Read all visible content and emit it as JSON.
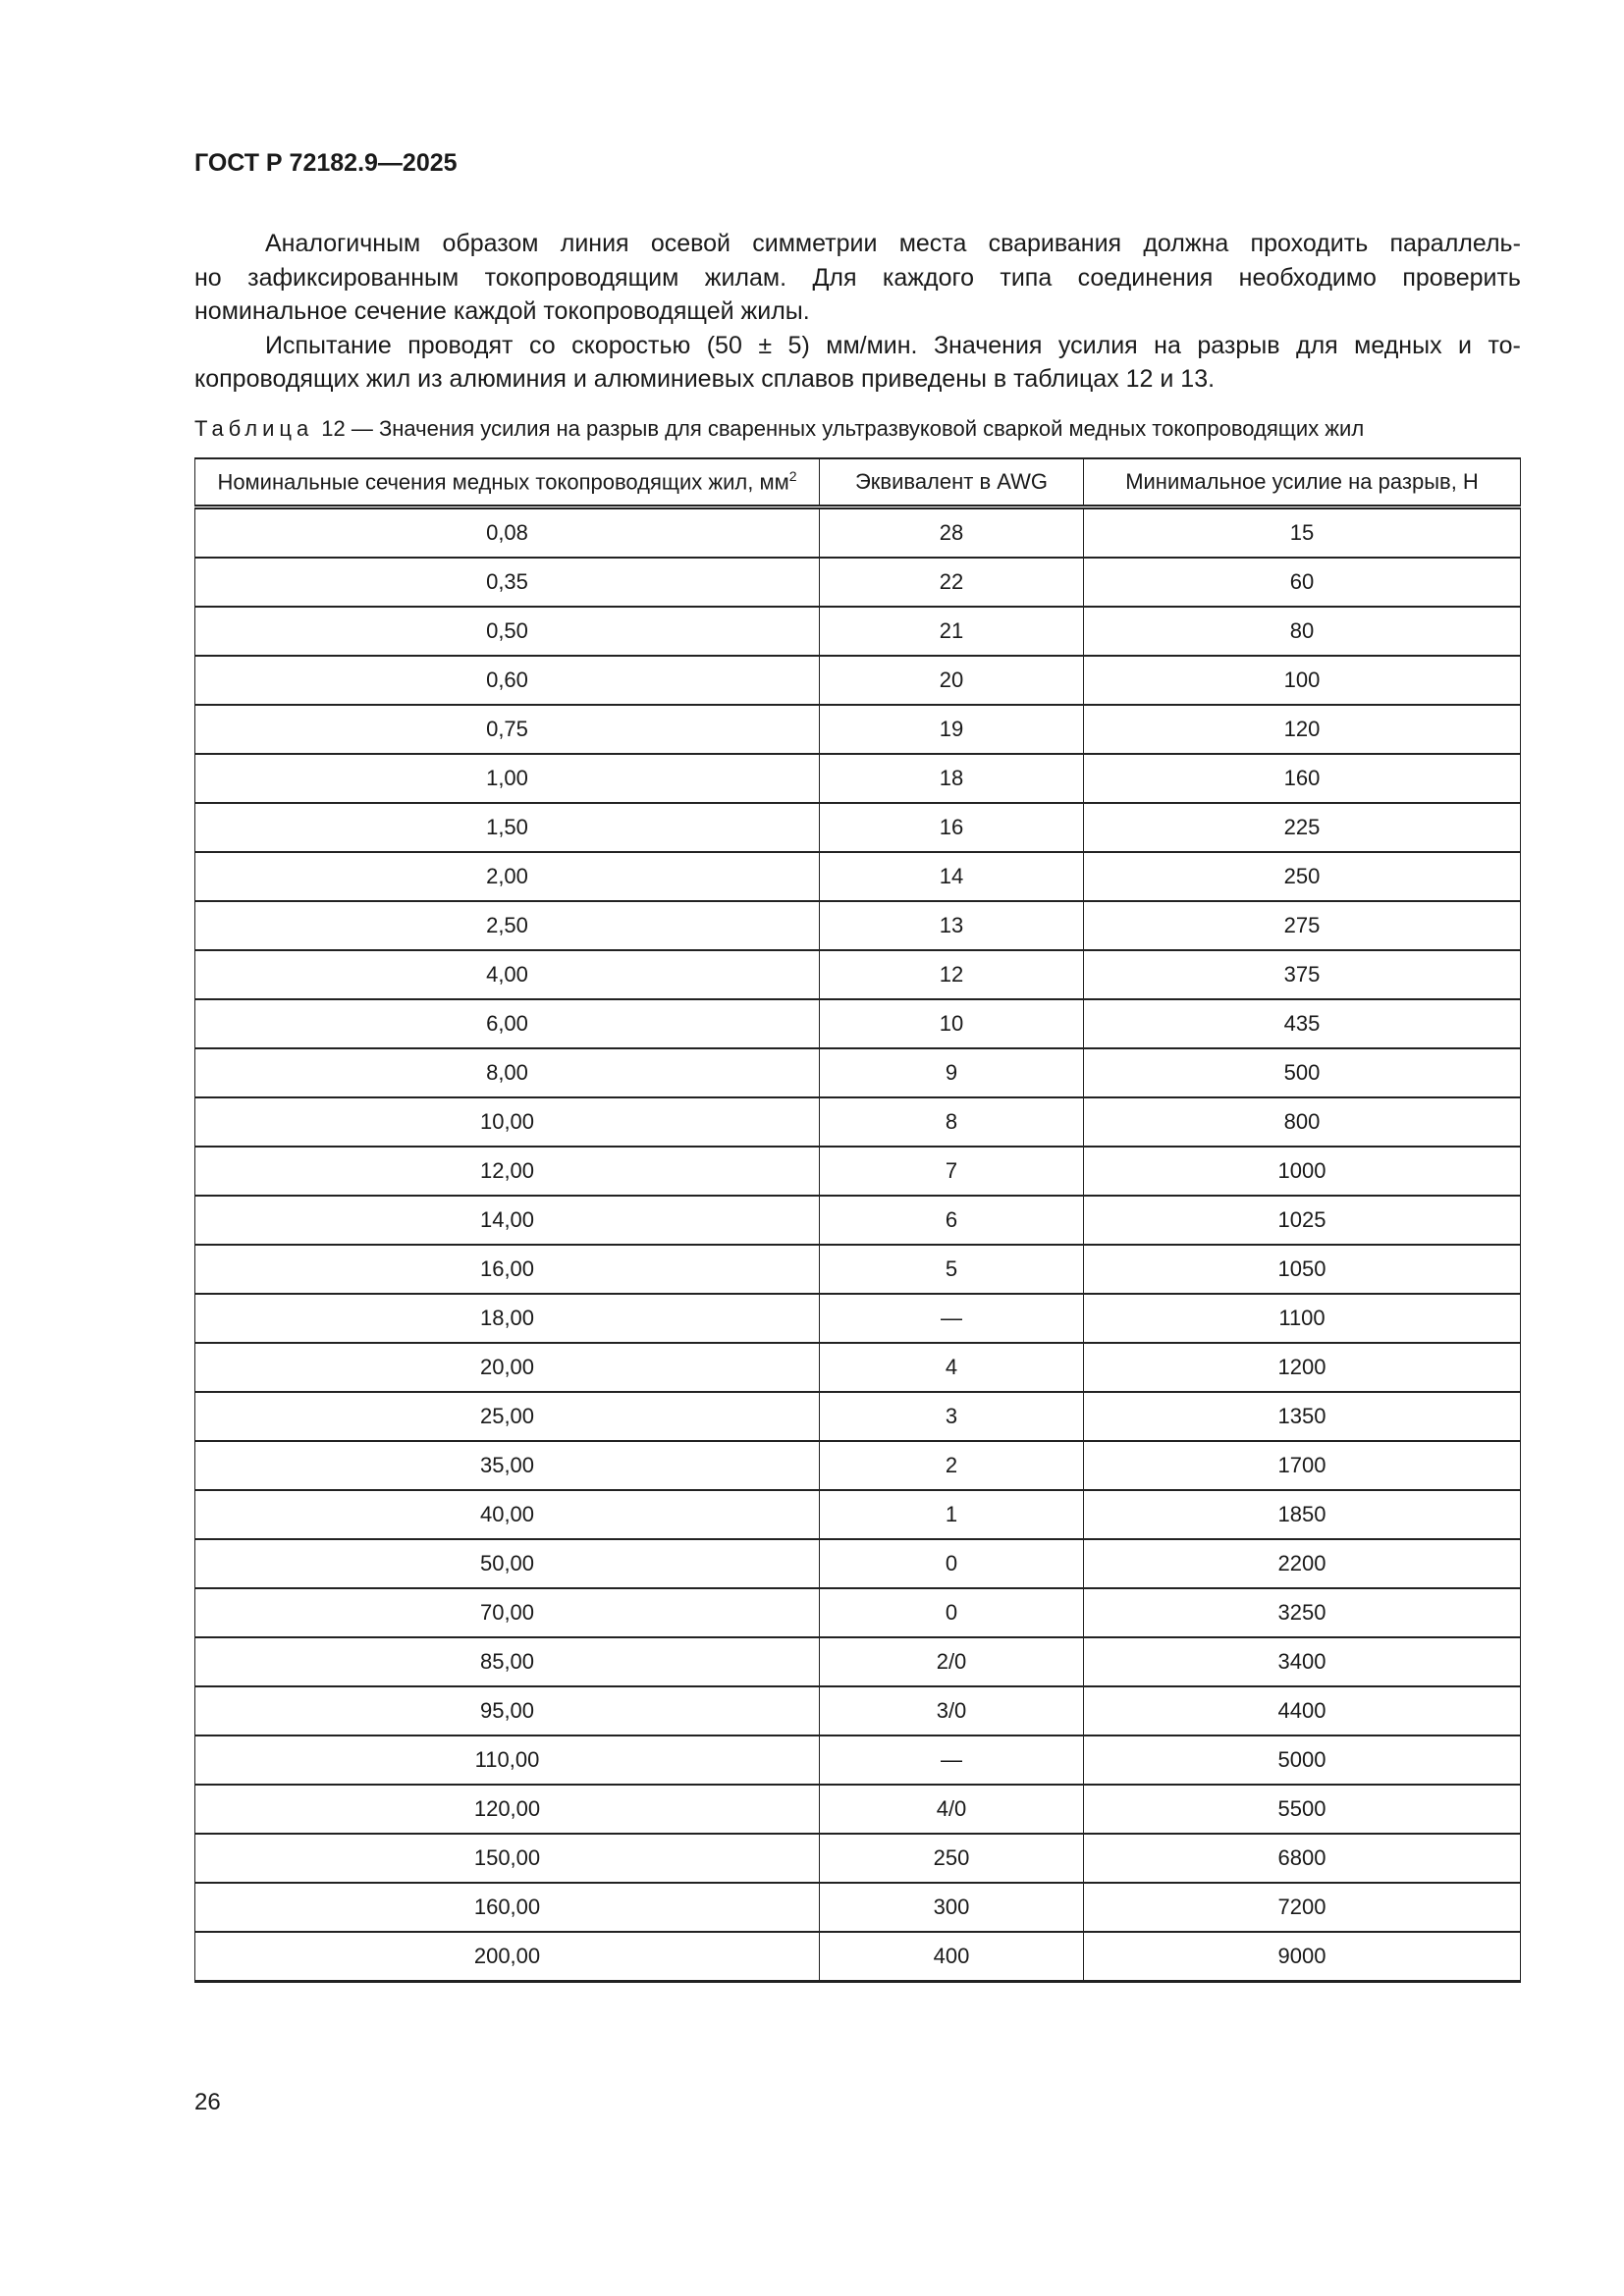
{
  "header": {
    "doc_id": "ГОСТ Р 72182.9—2025"
  },
  "paragraphs": [
    {
      "lines": [
        "Аналогичным образом линия осевой симметрии места сваривания должна проходить параллель-",
        "но зафиксированным токопроводящим жилам. Для каждого типа соединения необходимо проверить",
        "номинальное сечение каждой токопроводящей жилы."
      ]
    },
    {
      "lines": [
        "Испытание проводят со скоростью (50 ± 5) мм/мин. Значения усилия на разрыв для медных и то-",
        "копроводящих жил из алюминия и алюминиевых сплавов приведены в таблицах 12 и 13."
      ]
    }
  ],
  "table": {
    "caption_label": "Таблица",
    "caption_text": "12 — Значения усилия на разрыв для сваренных ультразвуковой сваркой медных токопроводящих жил",
    "headers": [
      "Номинальные сечения медных токопроводящих жил, мм",
      "Эквивалент в AWG",
      "Минимальное усилие на разрыв, Н"
    ],
    "header_sup": "2",
    "rows": [
      [
        "0,08",
        "28",
        "15"
      ],
      [
        "0,35",
        "22",
        "60"
      ],
      [
        "0,50",
        "21",
        "80"
      ],
      [
        "0,60",
        "20",
        "100"
      ],
      [
        "0,75",
        "19",
        "120"
      ],
      [
        "1,00",
        "18",
        "160"
      ],
      [
        "1,50",
        "16",
        "225"
      ],
      [
        "2,00",
        "14",
        "250"
      ],
      [
        "2,50",
        "13",
        "275"
      ],
      [
        "4,00",
        "12",
        "375"
      ],
      [
        "6,00",
        "10",
        "435"
      ],
      [
        "8,00",
        "9",
        "500"
      ],
      [
        "10,00",
        "8",
        "800"
      ],
      [
        "12,00",
        "7",
        "1000"
      ],
      [
        "14,00",
        "6",
        "1025"
      ],
      [
        "16,00",
        "5",
        "1050"
      ],
      [
        "18,00",
        "—",
        "1100"
      ],
      [
        "20,00",
        "4",
        "1200"
      ],
      [
        "25,00",
        "3",
        "1350"
      ],
      [
        "35,00",
        "2",
        "1700"
      ],
      [
        "40,00",
        "1",
        "1850"
      ],
      [
        "50,00",
        "0",
        "2200"
      ],
      [
        "70,00",
        "0",
        "3250"
      ],
      [
        "85,00",
        "2/0",
        "3400"
      ],
      [
        "95,00",
        "3/0",
        "4400"
      ],
      [
        "110,00",
        "—",
        "5000"
      ],
      [
        "120,00",
        "4/0",
        "5500"
      ],
      [
        "150,00",
        "250",
        "6800"
      ],
      [
        "160,00",
        "300",
        "7200"
      ],
      [
        "200,00",
        "400",
        "9000"
      ]
    ]
  },
  "footer": {
    "page_number": "26"
  }
}
